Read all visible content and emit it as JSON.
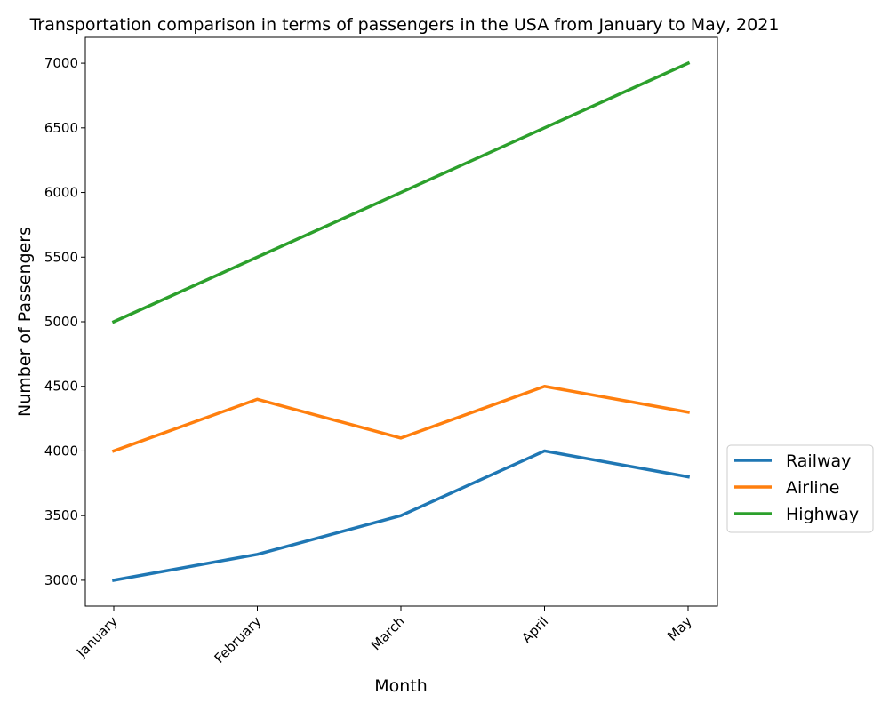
{
  "chart_data": {
    "type": "line",
    "title": "Transportation comparison in terms of passengers in the USA from January to May, 2021",
    "xlabel": "Month",
    "ylabel": "Number of Passengers",
    "categories": [
      "January",
      "February",
      "March",
      "April",
      "May"
    ],
    "y_ticks": [
      3000,
      3500,
      4000,
      4500,
      5000,
      5500,
      6000,
      6500,
      7000
    ],
    "ylim": [
      2800,
      7200
    ],
    "grid": false,
    "legend_position": "right, outside",
    "series": [
      {
        "name": "Railway",
        "color": "#1f77b4",
        "values": [
          3000,
          3200,
          3500,
          4000,
          3800
        ]
      },
      {
        "name": "Airline",
        "color": "#ff7f0e",
        "values": [
          4000,
          4400,
          4100,
          4500,
          4300
        ]
      },
      {
        "name": "Highway",
        "color": "#2ca02c",
        "values": [
          5000,
          5500,
          6000,
          6500,
          7000
        ]
      }
    ]
  }
}
